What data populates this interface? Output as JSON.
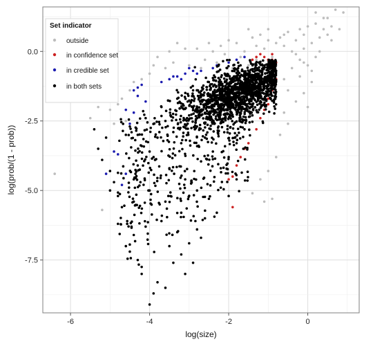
{
  "chart_data": {
    "type": "scatter",
    "xlabel": "log(size)",
    "ylabel": "log(prob/(1 - prob))",
    "xlim": [
      -6.7,
      1.3
    ],
    "ylim": [
      -9.4,
      1.6
    ],
    "x_ticks": [
      -6,
      -4,
      -2,
      0
    ],
    "y_ticks": [
      0.0,
      -2.5,
      -5.0,
      -7.5
    ],
    "x_tick_labels": [
      "-6",
      "-4",
      "-2",
      "0"
    ],
    "y_tick_labels": [
      "0.0",
      "-2.5",
      "-5.0",
      "-7.5"
    ],
    "grid": true,
    "legend_position": "top-left",
    "legend": {
      "title": "Set indicator",
      "entries": [
        {
          "key": "outside",
          "label": "outside",
          "color": "#bdbdbd"
        },
        {
          "key": "confidence",
          "label": "in confidence set",
          "color": "#cc2222"
        },
        {
          "key": "credible",
          "label": "in credible set",
          "color": "#1c1cb0"
        },
        {
          "key": "both",
          "label": "in both sets",
          "color": "#000000"
        }
      ]
    },
    "series": [
      {
        "key": "outside",
        "points": [
          [
            -6.4,
            -4.4
          ],
          [
            -5.2,
            -5.7
          ],
          [
            -5.3,
            -2.0
          ],
          [
            -5.0,
            -2.1
          ],
          [
            -4.9,
            -2.6
          ],
          [
            -5.2,
            -1.6
          ],
          [
            -4.8,
            -1.9
          ],
          [
            -4.7,
            -1.7
          ],
          [
            -4.6,
            -2.5
          ],
          [
            -5.5,
            -2.4
          ],
          [
            -3.8,
            -0.2
          ],
          [
            -3.5,
            0.0
          ],
          [
            -3.4,
            -0.4
          ],
          [
            -3.3,
            0.3
          ],
          [
            -3.0,
            -0.5
          ],
          [
            -2.8,
            0.1
          ],
          [
            -2.6,
            -0.3
          ],
          [
            -2.5,
            0.3
          ],
          [
            -2.4,
            0.0
          ],
          [
            -2.2,
            0.2
          ],
          [
            -2.0,
            0.4
          ],
          [
            -1.8,
            0.3
          ],
          [
            -1.6,
            0.0
          ],
          [
            -1.4,
            0.5
          ],
          [
            -1.3,
            0.2
          ],
          [
            -1.2,
            0.6
          ],
          [
            -1.1,
            0.1
          ],
          [
            -1.0,
            0.4
          ],
          [
            -0.9,
            -0.2
          ],
          [
            -0.8,
            0.3
          ],
          [
            -0.7,
            0.5
          ],
          [
            -0.6,
            0.2
          ],
          [
            -0.5,
            0.7
          ],
          [
            -0.4,
            0.0
          ],
          [
            -0.3,
            0.4
          ],
          [
            -0.2,
            -0.3
          ],
          [
            -0.1,
            0.6
          ],
          [
            0.0,
            0.9
          ],
          [
            0.1,
            0.3
          ],
          [
            0.2,
            1.0
          ],
          [
            0.3,
            0.5
          ],
          [
            0.4,
            1.2
          ],
          [
            0.5,
            0.6
          ],
          [
            0.6,
            0.9
          ],
          [
            0.7,
            1.5
          ],
          [
            0.8,
            0.8
          ],
          [
            0.9,
            1.4
          ],
          [
            0.2,
            1.4
          ],
          [
            0.5,
            1.2
          ],
          [
            -0.4,
            -0.6
          ],
          [
            -0.2,
            -0.9
          ],
          [
            0.0,
            -0.5
          ],
          [
            0.1,
            -1.1
          ],
          [
            0.2,
            -0.2
          ],
          [
            -0.5,
            -1.4
          ],
          [
            -0.3,
            -1.8
          ],
          [
            -0.6,
            -2.2
          ],
          [
            -0.7,
            -3.0
          ],
          [
            -0.5,
            -2.6
          ],
          [
            -0.8,
            -3.8
          ],
          [
            -1.0,
            -4.3
          ],
          [
            -1.2,
            -4.6
          ],
          [
            -1.4,
            -5.1
          ],
          [
            -0.9,
            -5.3
          ],
          [
            -1.1,
            -5.4
          ],
          [
            -0.6,
            -1.0
          ],
          [
            -0.9,
            -0.6
          ],
          [
            -1.3,
            -0.3
          ],
          [
            -1.5,
            -0.5
          ],
          [
            -1.7,
            -0.2
          ],
          [
            -1.9,
            -0.6
          ],
          [
            -2.1,
            -0.1
          ],
          [
            -2.3,
            -0.4
          ],
          [
            -2.7,
            -0.6
          ],
          [
            -3.1,
            0.1
          ],
          [
            -3.6,
            -0.6
          ],
          [
            -4.0,
            -0.8
          ],
          [
            -4.2,
            -1.0
          ],
          [
            -4.4,
            -1.1
          ],
          [
            -4.5,
            -1.4
          ],
          [
            -3.9,
            -0.5
          ],
          [
            0.3,
            0.0
          ],
          [
            0.4,
            0.8
          ],
          [
            0.6,
            0.4
          ],
          [
            -0.1,
            0.1
          ],
          [
            -0.2,
            0.8
          ],
          [
            -0.6,
            0.6
          ],
          [
            -1.5,
            0.8
          ],
          [
            -0.8,
            -0.5
          ],
          [
            -0.1,
            -1.5
          ],
          [
            0.0,
            -2.0
          ],
          [
            0.1,
            -0.7
          ],
          [
            -0.3,
            -0.1
          ],
          [
            -1.0,
            0.8
          ],
          [
            -0.1,
            -0.4
          ]
        ]
      },
      {
        "key": "confidence",
        "points": [
          [
            -1.3,
            -0.2
          ],
          [
            -1.1,
            -0.2
          ],
          [
            -1.0,
            -0.3
          ],
          [
            -0.9,
            -0.1
          ],
          [
            -1.2,
            -0.1
          ],
          [
            -0.8,
            -0.4
          ],
          [
            -1.4,
            -0.3
          ],
          [
            -0.9,
            -0.3
          ],
          [
            -0.8,
            -1.0
          ],
          [
            -0.9,
            -1.4
          ],
          [
            -1.0,
            -1.7
          ],
          [
            -1.1,
            -2.1
          ],
          [
            -1.2,
            -2.4
          ],
          [
            -1.3,
            -2.8
          ],
          [
            -1.5,
            -3.3
          ],
          [
            -1.6,
            -3.5
          ],
          [
            -1.7,
            -3.8
          ],
          [
            -1.8,
            -4.1
          ],
          [
            -1.9,
            -4.5
          ],
          [
            -2.0,
            -4.6
          ],
          [
            -1.9,
            -5.6
          ],
          [
            -0.9,
            -1.2
          ],
          [
            -1.0,
            -1.9
          ]
        ]
      },
      {
        "key": "credible",
        "points": [
          [
            -5.1,
            -4.4
          ],
          [
            -4.8,
            -3.7
          ],
          [
            -4.7,
            -4.8
          ],
          [
            -4.6,
            -4.4
          ],
          [
            -4.9,
            -3.6
          ],
          [
            -4.5,
            -2.6
          ],
          [
            -4.6,
            -2.1
          ],
          [
            -4.4,
            -2.2
          ],
          [
            -4.3,
            -1.6
          ],
          [
            -4.4,
            -1.4
          ],
          [
            -4.2,
            -1.2
          ],
          [
            -4.1,
            -1.8
          ],
          [
            -3.7,
            -1.1
          ],
          [
            -3.5,
            -1.0
          ],
          [
            -3.3,
            -0.9
          ],
          [
            -3.1,
            -0.8
          ],
          [
            -3.0,
            -0.6
          ],
          [
            -2.9,
            -0.7
          ],
          [
            -2.8,
            -0.8
          ],
          [
            -2.7,
            -0.7
          ],
          [
            -2.4,
            -0.6
          ],
          [
            -2.3,
            -0.5
          ],
          [
            -2.0,
            -0.4
          ],
          [
            -1.8,
            -0.3
          ],
          [
            -1.6,
            -0.2
          ],
          [
            -3.2,
            -1.0
          ],
          [
            -3.4,
            -0.9
          ],
          [
            -4.3,
            -1.3
          ]
        ]
      },
      {
        "key": "both",
        "cloud_center": [
          -1.7,
          -1.5
        ],
        "points": [
          [
            -4.0,
            -9.1
          ],
          [
            -3.9,
            -8.7
          ],
          [
            -3.8,
            -8.3
          ],
          [
            -3.6,
            -8.5
          ],
          [
            -4.3,
            -7.5
          ],
          [
            -4.5,
            -7.2
          ],
          [
            -3.4,
            -7.6
          ],
          [
            -3.1,
            -8.0
          ],
          [
            -2.9,
            -7.6
          ],
          [
            -4.4,
            -6.6
          ],
          [
            -4.1,
            -6.3
          ],
          [
            -3.7,
            -6.1
          ],
          [
            -3.3,
            -6.5
          ],
          [
            -2.8,
            -6.4
          ],
          [
            -2.6,
            -6.0
          ],
          [
            -2.3,
            -5.8
          ],
          [
            -4.7,
            -5.6
          ],
          [
            -4.8,
            -5.2
          ],
          [
            -4.9,
            -4.7
          ],
          [
            -5.0,
            -4.3
          ],
          [
            -5.2,
            -3.9
          ],
          [
            -5.3,
            -3.5
          ],
          [
            -5.1,
            -3.1
          ],
          [
            -5.4,
            -2.8
          ],
          [
            -4.6,
            -3.0
          ],
          [
            -4.2,
            -3.4
          ],
          [
            -3.9,
            -3.8
          ],
          [
            -3.5,
            -4.2
          ],
          [
            -3.1,
            -4.6
          ],
          [
            -2.8,
            -5.0
          ],
          [
            -2.5,
            -5.3
          ],
          [
            -2.2,
            -4.9
          ],
          [
            -2.0,
            -5.2
          ],
          [
            -1.8,
            -4.6
          ],
          [
            -4.5,
            -2.7
          ],
          [
            -4.1,
            -2.4
          ],
          [
            -3.7,
            -2.0
          ],
          [
            -3.3,
            -1.7
          ],
          [
            -2.9,
            -1.4
          ],
          [
            -2.5,
            -1.1
          ],
          [
            -2.1,
            -0.8
          ],
          [
            -1.7,
            -0.5
          ],
          [
            -1.3,
            -0.4
          ],
          [
            -0.9,
            -0.5
          ],
          [
            -0.8,
            -0.7
          ],
          [
            -0.9,
            -1.0
          ],
          [
            -1.0,
            -1.4
          ],
          [
            -1.2,
            -1.8
          ],
          [
            -1.4,
            -2.3
          ],
          [
            -1.6,
            -2.8
          ],
          [
            -1.8,
            -3.3
          ],
          [
            -2.0,
            -3.8
          ],
          [
            -2.2,
            -4.2
          ],
          [
            -2.4,
            -3.6
          ],
          [
            -2.6,
            -3.1
          ],
          [
            -2.8,
            -2.7
          ],
          [
            -3.0,
            -2.3
          ],
          [
            -3.2,
            -3.3
          ],
          [
            -3.4,
            -2.9
          ],
          [
            -3.6,
            -2.5
          ],
          [
            -3.8,
            -3.1
          ],
          [
            -4.0,
            -3.6
          ],
          [
            -4.3,
            -4.1
          ],
          [
            -4.4,
            -4.6
          ],
          [
            -4.0,
            -5.0
          ],
          [
            -3.6,
            -5.4
          ],
          [
            -3.2,
            -5.8
          ],
          [
            -3.0,
            -6.9
          ],
          [
            -3.5,
            -7.0
          ],
          [
            -4.2,
            -8.0
          ],
          [
            -4.6,
            -7.0
          ],
          [
            -4.8,
            -6.2
          ],
          [
            -3.2,
            -7.3
          ],
          [
            -2.7,
            -6.7
          ],
          [
            -4.4,
            -5.4
          ],
          [
            -5.0,
            -5.0
          ],
          [
            -4.3,
            -3.0
          ]
        ]
      }
    ]
  }
}
